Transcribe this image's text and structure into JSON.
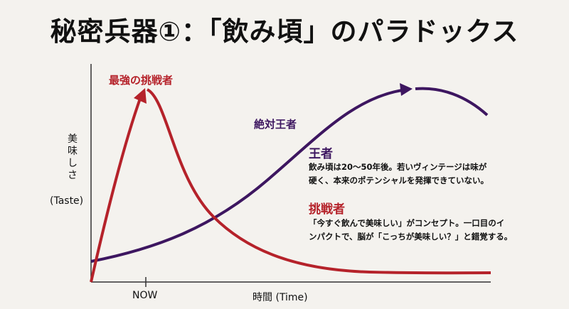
{
  "title": "秘密兵器①：「飲み頃」のパラドックス",
  "axes": {
    "y_label": "美味しさ",
    "y_label_en": "(Taste)",
    "x_label": "時間 (Time)",
    "x_tick": "NOW"
  },
  "curves": {
    "challenger": {
      "label": "最強の挑戦者",
      "color": "#b5222a"
    },
    "king": {
      "label": "絶対王者",
      "color": "#3d1660"
    }
  },
  "legend": {
    "king": {
      "heading": "王者",
      "lines": [
        "飲み頃は20〜50年後。若いヴィンテージは味が",
        "硬く、本来のポテンシャルを発揮できていない。"
      ]
    },
    "challenger": {
      "heading": "挑戦者",
      "lines": [
        "「今すぐ飲んで美味しい」がコンセプト。一口目のイ",
        "ンパクトで、脳が「こっちが美味しい？」と錯覚する。"
      ]
    }
  }
}
